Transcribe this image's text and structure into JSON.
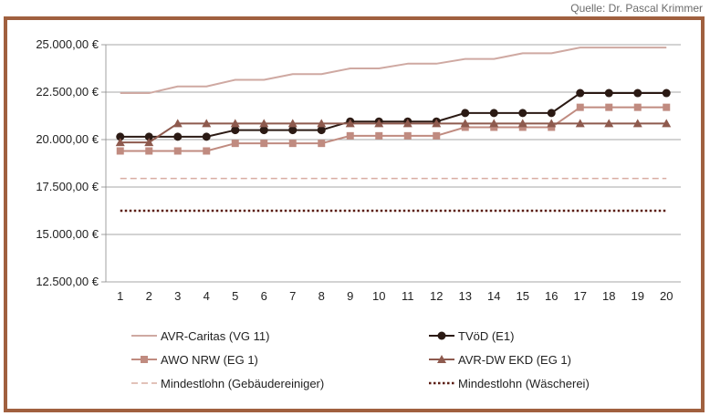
{
  "source": "Quelle: Dr. Pascal Krimmer",
  "chart_data": {
    "type": "line",
    "x": [
      1,
      2,
      3,
      4,
      5,
      6,
      7,
      8,
      9,
      10,
      11,
      12,
      13,
      14,
      15,
      16,
      17,
      18,
      19,
      20
    ],
    "ylim": [
      12500,
      25000
    ],
    "yticks": [
      12500,
      15000,
      17500,
      20000,
      22500,
      25000
    ],
    "ytick_labels": [
      "12.500,00 €",
      "15.000,00 €",
      "17.500,00 €",
      "20.000,00 €",
      "22.500,00 €",
      "25.000,00 €"
    ],
    "grid": true,
    "legend_position": "bottom",
    "series": [
      {
        "name": "AVR-Caritas (VG 11)",
        "color": "#cfa9a2",
        "marker": "none",
        "dash": "solid",
        "width": 2,
        "values": [
          22450,
          22450,
          22800,
          22800,
          23150,
          23150,
          23450,
          23450,
          23750,
          23750,
          24000,
          24000,
          24250,
          24250,
          24550,
          24550,
          24850,
          24850,
          24850,
          24850
        ]
      },
      {
        "name": "TVöD (E1)",
        "color": "#2b1a14",
        "marker": "circle",
        "dash": "solid",
        "width": 2,
        "values": [
          20150,
          20150,
          20150,
          20150,
          20500,
          20500,
          20500,
          20500,
          20950,
          20950,
          20950,
          20950,
          21400,
          21400,
          21400,
          21400,
          22450,
          22450,
          22450,
          22450
        ]
      },
      {
        "name": "AWO NRW (EG 1)",
        "color": "#c08b80",
        "marker": "square",
        "dash": "solid",
        "width": 2,
        "values": [
          19400,
          19400,
          19400,
          19400,
          19800,
          19800,
          19800,
          19800,
          20200,
          20200,
          20200,
          20200,
          20650,
          20650,
          20650,
          20650,
          21700,
          21700,
          21700,
          21700
        ]
      },
      {
        "name": "AVR-DW EKD (EG 1)",
        "color": "#8e5a4e",
        "marker": "triangle",
        "dash": "solid",
        "width": 2,
        "values": [
          19850,
          19850,
          20850,
          20850,
          20850,
          20850,
          20850,
          20850,
          20850,
          20850,
          20850,
          20850,
          20850,
          20850,
          20850,
          20850,
          20850,
          20850,
          20850,
          20850
        ]
      },
      {
        "name": "Mindestlohn (Gebäudereiniger)",
        "color": "#d9ada2",
        "marker": "none",
        "dash": "dashed",
        "width": 1.5,
        "values": [
          17950,
          17950,
          17950,
          17950,
          17950,
          17950,
          17950,
          17950,
          17950,
          17950,
          17950,
          17950,
          17950,
          17950,
          17950,
          17950,
          17950,
          17950,
          17950,
          17950
        ]
      },
      {
        "name": "Mindestlohn (Wäscherei)",
        "color": "#5a1c12",
        "marker": "none",
        "dash": "dotted",
        "width": 2.5,
        "values": [
          16250,
          16250,
          16250,
          16250,
          16250,
          16250,
          16250,
          16250,
          16250,
          16250,
          16250,
          16250,
          16250,
          16250,
          16250,
          16250,
          16250,
          16250,
          16250,
          16250
        ]
      }
    ]
  }
}
